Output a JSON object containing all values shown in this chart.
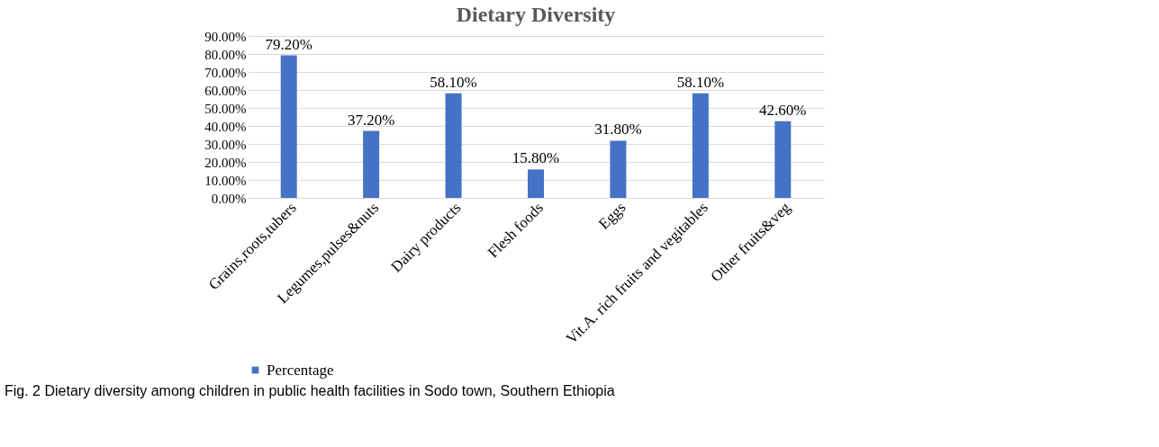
{
  "chart_data": {
    "type": "bar",
    "title": "Dietary Diversity",
    "categories": [
      "Grains,roots,tubers",
      "Legumes,pulses&nuts",
      "Dairy products",
      "Flesh foods",
      "Eggs",
      "Vit.A. rich fruits and vegitables",
      "Other fruits&veg"
    ],
    "series": [
      {
        "name": "Percentage",
        "color": "#4472c4",
        "values": [
          79.2,
          37.2,
          58.1,
          15.8,
          31.8,
          58.1,
          42.6
        ],
        "value_labels": [
          "79.20%",
          "37.20%",
          "58.10%",
          "15.80%",
          "31.80%",
          "58.10%",
          "42.60%"
        ]
      }
    ],
    "ylim": [
      0,
      90
    ],
    "yticks": [
      {
        "value": 0,
        "label": "0.00%"
      },
      {
        "value": 10,
        "label": "10.00%"
      },
      {
        "value": 20,
        "label": "20.00%"
      },
      {
        "value": 30,
        "label": "30.00%"
      },
      {
        "value": 40,
        "label": "40.00%"
      },
      {
        "value": 50,
        "label": "50.00%"
      },
      {
        "value": 60,
        "label": "60.00%"
      },
      {
        "value": 70,
        "label": "70.00%"
      },
      {
        "value": 80,
        "label": "80.00%"
      },
      {
        "value": 90,
        "label": "90.00%"
      }
    ],
    "grid": "y",
    "legend": "bottom",
    "annotations": [
      "Fig. 2  Dietary diversity among children in public health facilities in Sodo town, Southern Ethiopia"
    ]
  }
}
